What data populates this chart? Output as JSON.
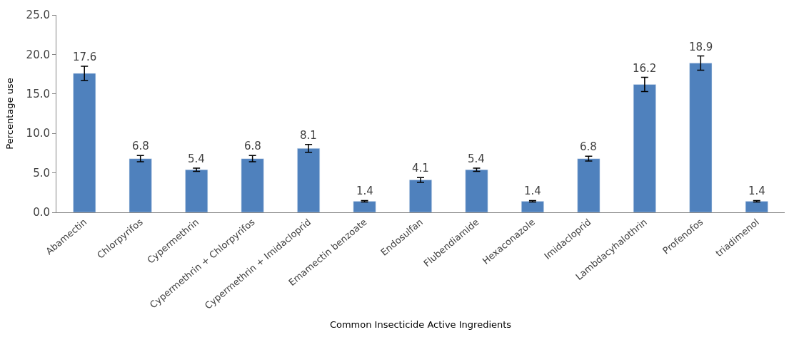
{
  "chart_data": {
    "type": "bar",
    "xlabel": "Common Insecticide Active Ingredients",
    "ylabel": "Percentage use",
    "categories": [
      "Abamectin",
      "Chlorpyrifos",
      "Cypermethrin",
      "Cypermethrin + Chlorpyrifos",
      "Cypermethrin + Imidacloprid",
      "Emamectin benzoate",
      "Endosulfan",
      "Flubendiamide",
      "Hexaconazole",
      "Imidacloprid",
      "Lambdacyhalothrin",
      "Profenofos",
      "triadimenol"
    ],
    "values": [
      17.6,
      6.8,
      5.4,
      6.8,
      8.1,
      1.4,
      4.1,
      5.4,
      1.4,
      6.8,
      16.2,
      18.9,
      1.4
    ],
    "errors": [
      0.9,
      0.4,
      0.2,
      0.4,
      0.5,
      0.1,
      0.3,
      0.2,
      0.1,
      0.3,
      0.9,
      0.9,
      0.1
    ],
    "color": "#4f81bd",
    "data_labels": true,
    "ylim": [
      0,
      25
    ],
    "yticks": [
      {
        "value": 0,
        "label": "0.0"
      },
      {
        "value": 5,
        "label": "5.0"
      },
      {
        "value": 10,
        "label": "10.0"
      },
      {
        "value": 15,
        "label": "15.0"
      },
      {
        "value": 20,
        "label": "20.0"
      },
      {
        "value": 25,
        "label": "25.0"
      }
    ],
    "legend": false
  }
}
